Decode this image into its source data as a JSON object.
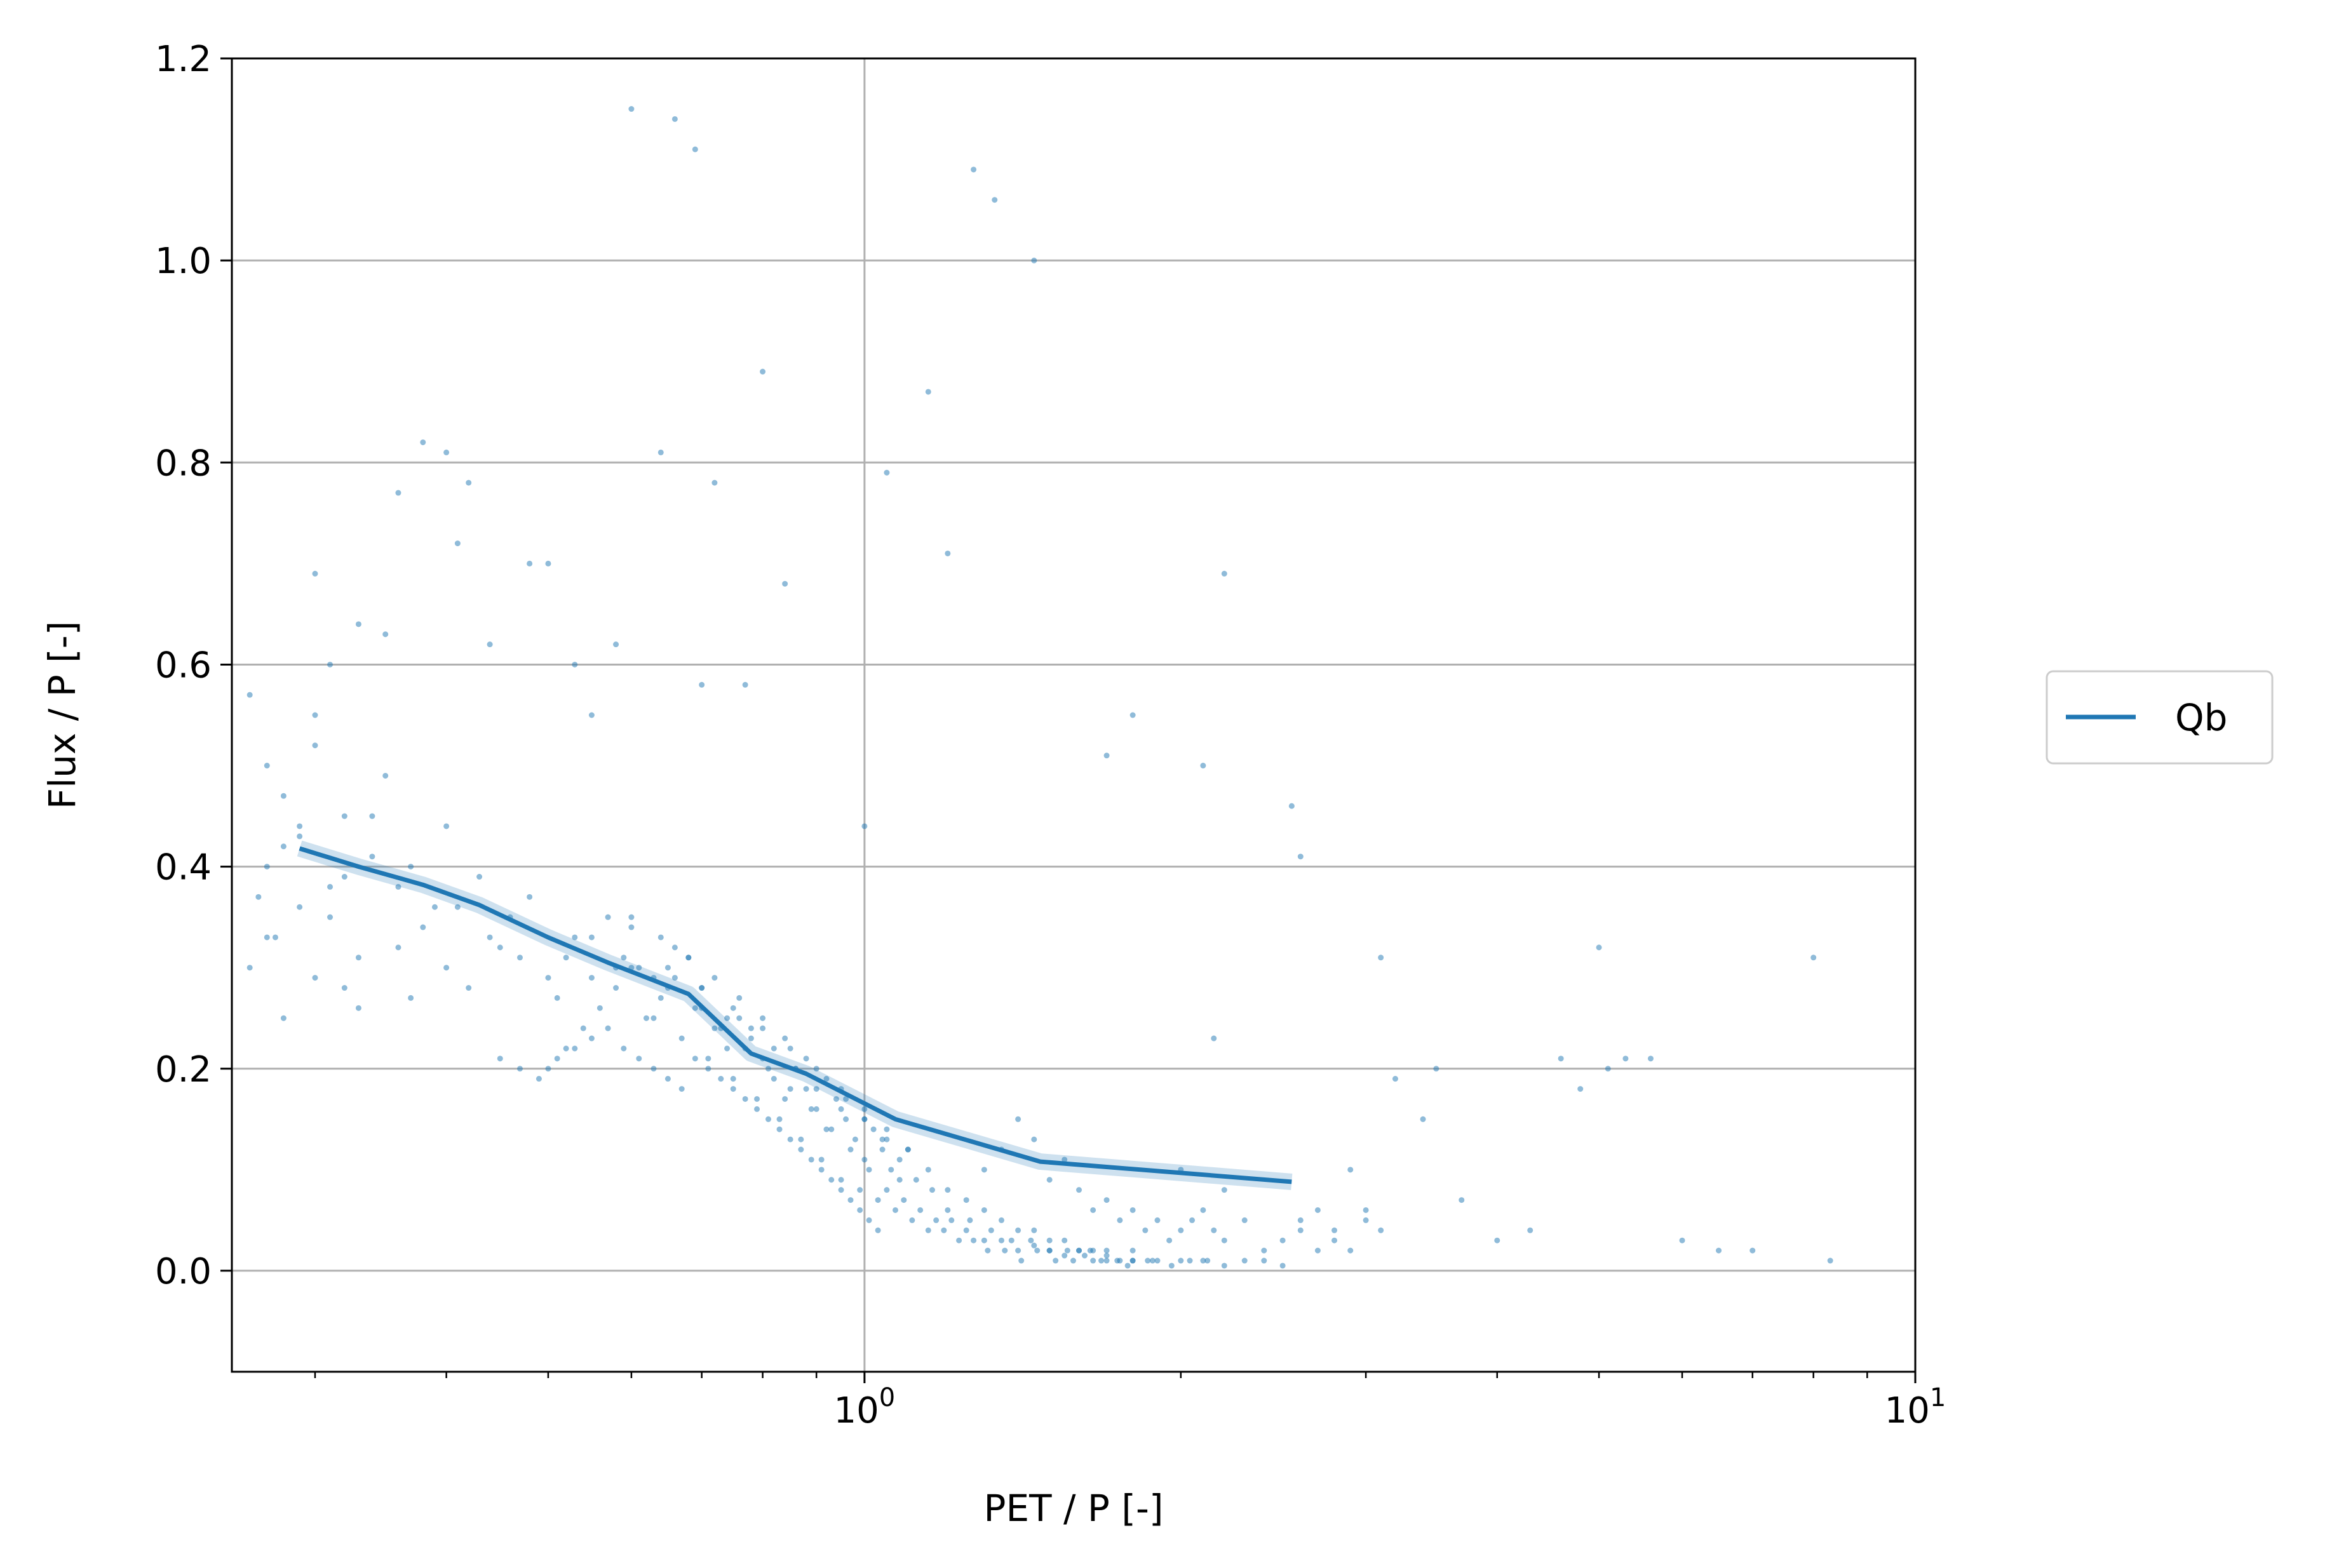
{
  "chart_data": {
    "type": "scatter",
    "title": "",
    "xlabel": "PET / P [-]",
    "ylabel": "Flux / P [-]",
    "xscale": "log",
    "xlim": [
      0.25,
      10
    ],
    "ylim": [
      -0.1,
      1.2
    ],
    "x_ticks": [
      {
        "value": 1,
        "base": "10",
        "exp": "0"
      },
      {
        "value": 10,
        "base": "10",
        "exp": "1"
      }
    ],
    "y_ticks": [
      {
        "value": 0.0,
        "label": "0.0"
      },
      {
        "value": 0.2,
        "label": "0.2"
      },
      {
        "value": 0.4,
        "label": "0.4"
      },
      {
        "value": 0.6,
        "label": "0.6"
      },
      {
        "value": 0.8,
        "label": "0.8"
      },
      {
        "value": 1.0,
        "label": "1.0"
      },
      {
        "value": 1.2,
        "label": "1.2"
      }
    ],
    "grid": true,
    "legend": {
      "placement": "right-outside",
      "entries": [
        "Qb"
      ]
    },
    "colors": {
      "series": "#1f77b4",
      "grid": "#b0b0b0",
      "legend_border": "#cccccc"
    },
    "series": [
      {
        "name": "Qb",
        "kind": "line",
        "x": [
          0.29,
          0.33,
          0.38,
          0.43,
          0.5,
          0.57,
          0.68,
          0.78,
          0.88,
          1.07,
          1.47,
          2.55
        ],
        "y": [
          0.418,
          0.4,
          0.382,
          0.362,
          0.33,
          0.305,
          0.274,
          0.215,
          0.195,
          0.15,
          0.108,
          0.088
        ]
      }
    ],
    "scatter": {
      "x": [
        0.265,
        0.27,
        0.275,
        0.28,
        0.29,
        0.3,
        0.31,
        0.32,
        0.33,
        0.28,
        0.27,
        0.3,
        0.32,
        0.34,
        0.36,
        0.38,
        0.4,
        0.42,
        0.45,
        0.3,
        0.35,
        0.31,
        0.26,
        0.29,
        0.33,
        0.37,
        0.41,
        0.44,
        0.47,
        0.5,
        0.27,
        0.31,
        0.29,
        0.34,
        0.37,
        0.39,
        0.43,
        0.26,
        0.28,
        0.32,
        0.36,
        0.4,
        0.46,
        0.48,
        0.52,
        0.55,
        0.58,
        0.6,
        0.63,
        0.66,
        0.7,
        0.74,
        0.78,
        0.82,
        0.86,
        0.9,
        0.95,
        1.0,
        1.05,
        1.1,
        0.5,
        0.52,
        0.54,
        0.56,
        0.58,
        0.6,
        0.62,
        0.64,
        0.66,
        0.68,
        0.7,
        0.72,
        0.74,
        0.76,
        0.78,
        0.8,
        0.82,
        0.84,
        0.86,
        0.88,
        0.9,
        0.92,
        0.94,
        0.96,
        0.98,
        1.0,
        1.02,
        1.04,
        1.06,
        1.08,
        0.53,
        0.57,
        0.61,
        0.65,
        0.69,
        0.73,
        0.77,
        0.81,
        0.85,
        0.89,
        0.93,
        0.97,
        1.01,
        1.05,
        1.09,
        1.13,
        1.17,
        1.21,
        1.25,
        1.3,
        1.35,
        1.4,
        1.45,
        1.5,
        1.55,
        1.6,
        1.65,
        1.7,
        1.75,
        1.8,
        0.51,
        0.55,
        0.59,
        0.63,
        0.67,
        0.71,
        0.75,
        0.79,
        0.83,
        0.87,
        0.91,
        0.95,
        0.99,
        1.03,
        1.07,
        1.11,
        1.15,
        1.19,
        1.23,
        1.27,
        1.31,
        1.36,
        1.41,
        1.46,
        1.52,
        1.58,
        1.64,
        1.7,
        1.78,
        1.86,
        0.6,
        0.64,
        0.68,
        0.72,
        0.76,
        0.8,
        0.84,
        0.88,
        0.92,
        0.96,
        1.0,
        1.04,
        1.08,
        1.12,
        1.16,
        1.2,
        1.26,
        1.32,
        1.38,
        1.44,
        1.5,
        1.56,
        1.62,
        1.68,
        1.74,
        1.8,
        1.88,
        1.96,
        2.04,
        2.12,
        0.65,
        0.7,
        0.75,
        0.8,
        0.85,
        0.9,
        0.95,
        1.0,
        1.05,
        1.1,
        1.15,
        1.2,
        1.25,
        1.3,
        1.35,
        1.4,
        1.45,
        1.5,
        1.55,
        1.6,
        1.65,
        1.7,
        1.8,
        1.9,
        2.0,
        2.1,
        2.2,
        2.3,
        2.4,
        2.5,
        1.3,
        1.35,
        1.4,
        1.45,
        1.5,
        1.55,
        1.6,
        1.65,
        1.7,
        1.75,
        1.8,
        1.85,
        1.9,
        1.95,
        2.0,
        2.05,
        2.1,
        2.15,
        2.2,
        2.3,
        2.4,
        2.5,
        2.6,
        2.7,
        2.8,
        2.9,
        3.0,
        3.1,
        2.2,
        2.0,
        0.45,
        0.47,
        0.49,
        0.51,
        0.53,
        0.55,
        0.57,
        0.59,
        0.61,
        0.63,
        0.65,
        0.67,
        0.69,
        0.71,
        0.73,
        0.75,
        0.77,
        0.79,
        0.81,
        0.83,
        0.85,
        0.87,
        0.89,
        0.91,
        0.93,
        0.95,
        0.97,
        0.99,
        1.01,
        1.03,
        0.6,
        0.66,
        0.69,
        0.64,
        0.72,
        0.58,
        0.7,
        0.77,
        1.27,
        1.33,
        1.45,
        1.15,
        1.2,
        0.55,
        1.0,
        0.53,
        0.48,
        0.4,
        0.38,
        0.36,
        0.42,
        0.3,
        0.33,
        0.35,
        0.41,
        0.5,
        0.44,
        0.8,
        0.84,
        1.05,
        2.2,
        1.8,
        1.7,
        2.6,
        2.1,
        2.15,
        2.55,
        3.1,
        3.2,
        3.5,
        4.6,
        5.1,
        5.3,
        5.6,
        8.0,
        3.7,
        4.0,
        4.3,
        6.0,
        6.5,
        7.0,
        8.3,
        5.0,
        4.8,
        3.4,
        2.9,
        3.0,
        2.8,
        2.7,
        2.6
      ],
      "y": [
        0.37,
        0.4,
        0.33,
        0.42,
        0.36,
        0.29,
        0.35,
        0.39,
        0.31,
        0.47,
        0.5,
        0.52,
        0.45,
        0.41,
        0.38,
        0.34,
        0.3,
        0.28,
        0.32,
        0.55,
        0.49,
        0.6,
        0.57,
        0.44,
        0.26,
        0.27,
        0.36,
        0.33,
        0.31,
        0.29,
        0.33,
        0.38,
        0.43,
        0.45,
        0.4,
        0.36,
        0.39,
        0.3,
        0.25,
        0.28,
        0.32,
        0.44,
        0.35,
        0.37,
        0.31,
        0.33,
        0.3,
        0.34,
        0.29,
        0.32,
        0.28,
        0.25,
        0.24,
        0.22,
        0.2,
        0.18,
        0.16,
        0.15,
        0.13,
        0.12,
        0.2,
        0.22,
        0.24,
        0.26,
        0.28,
        0.3,
        0.25,
        0.27,
        0.29,
        0.31,
        0.26,
        0.24,
        0.22,
        0.25,
        0.23,
        0.21,
        0.19,
        0.17,
        0.2,
        0.18,
        0.16,
        0.14,
        0.17,
        0.15,
        0.13,
        0.11,
        0.14,
        0.12,
        0.1,
        0.09,
        0.33,
        0.35,
        0.3,
        0.28,
        0.26,
        0.24,
        0.22,
        0.2,
        0.18,
        0.16,
        0.14,
        0.12,
        0.1,
        0.08,
        0.07,
        0.06,
        0.05,
        0.05,
        0.04,
        0.03,
        0.03,
        0.02,
        0.025,
        0.02,
        0.015,
        0.02,
        0.01,
        0.015,
        0.01,
        0.02,
        0.27,
        0.29,
        0.31,
        0.25,
        0.23,
        0.21,
        0.19,
        0.17,
        0.15,
        0.13,
        0.11,
        0.09,
        0.08,
        0.07,
        0.06,
        0.05,
        0.04,
        0.04,
        0.03,
        0.03,
        0.02,
        0.02,
        0.01,
        0.02,
        0.01,
        0.01,
        0.02,
        0.01,
        0.005,
        0.01,
        0.35,
        0.33,
        0.31,
        0.29,
        0.27,
        0.25,
        0.23,
        0.21,
        0.19,
        0.17,
        0.15,
        0.13,
        0.11,
        0.09,
        0.08,
        0.06,
        0.05,
        0.04,
        0.03,
        0.03,
        0.02,
        0.02,
        0.015,
        0.01,
        0.01,
        0.01,
        0.01,
        0.005,
        0.01,
        0.01,
        0.3,
        0.28,
        0.26,
        0.24,
        0.22,
        0.2,
        0.18,
        0.16,
        0.14,
        0.12,
        0.1,
        0.08,
        0.07,
        0.06,
        0.05,
        0.04,
        0.04,
        0.03,
        0.03,
        0.02,
        0.02,
        0.02,
        0.01,
        0.01,
        0.01,
        0.01,
        0.005,
        0.01,
        0.01,
        0.005,
        0.1,
        0.12,
        0.15,
        0.13,
        0.09,
        0.11,
        0.08,
        0.06,
        0.07,
        0.05,
        0.06,
        0.04,
        0.05,
        0.03,
        0.04,
        0.05,
        0.06,
        0.04,
        0.03,
        0.05,
        0.02,
        0.03,
        0.04,
        0.06,
        0.03,
        0.02,
        0.05,
        0.04,
        0.08,
        0.1,
        0.21,
        0.2,
        0.19,
        0.21,
        0.22,
        0.23,
        0.24,
        0.22,
        0.21,
        0.2,
        0.19,
        0.18,
        0.21,
        0.2,
        0.19,
        0.18,
        0.17,
        0.16,
        0.15,
        0.14,
        0.13,
        0.12,
        0.11,
        0.1,
        0.09,
        0.08,
        0.07,
        0.06,
        0.05,
        0.04,
        1.15,
        1.14,
        1.11,
        0.81,
        0.78,
        0.62,
        0.58,
        0.58,
        1.09,
        1.06,
        1.0,
        0.87,
        0.71,
        0.55,
        0.44,
        0.6,
        0.7,
        0.81,
        0.82,
        0.77,
        0.78,
        0.69,
        0.64,
        0.63,
        0.72,
        0.7,
        0.62,
        0.89,
        0.68,
        0.79,
        0.69,
        0.55,
        0.51,
        0.41,
        0.5,
        0.23,
        0.46,
        0.31,
        0.19,
        0.2,
        0.21,
        0.2,
        0.21,
        0.21,
        0.31,
        0.07,
        0.03,
        0.04,
        0.03,
        0.02,
        0.02,
        0.01,
        0.32,
        0.18,
        0.15,
        0.1,
        0.06,
        0.04,
        0.02,
        0.05
      ]
    }
  }
}
